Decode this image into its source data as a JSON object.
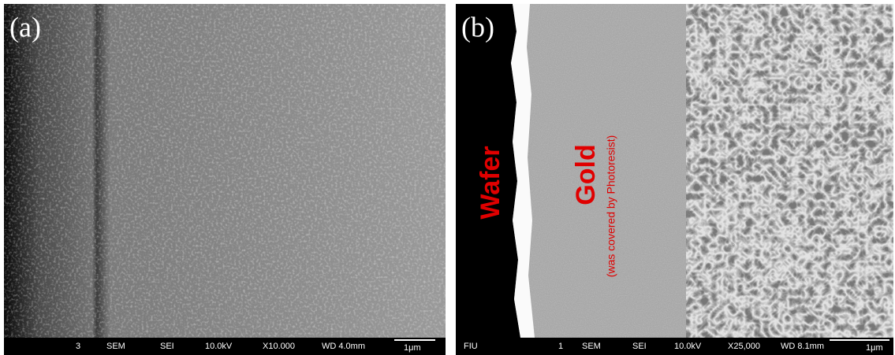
{
  "panels": [
    {
      "label": "(a)",
      "footer": [
        "3",
        "SEM",
        "SEI",
        "10.0kV",
        "X10.000",
        "WD 4.0mm"
      ],
      "scale": "1μm"
    },
    {
      "label": "(b)",
      "footer": [
        "FIU",
        "1",
        "SEM",
        "SEI",
        "10.0kV",
        "X25,000",
        "WD 8.1mm"
      ],
      "scale": "1μm",
      "annotations": {
        "wafer": "Wafer",
        "gold": "Gold",
        "gold_note": "(was covered by Photoresist)"
      }
    }
  ]
}
